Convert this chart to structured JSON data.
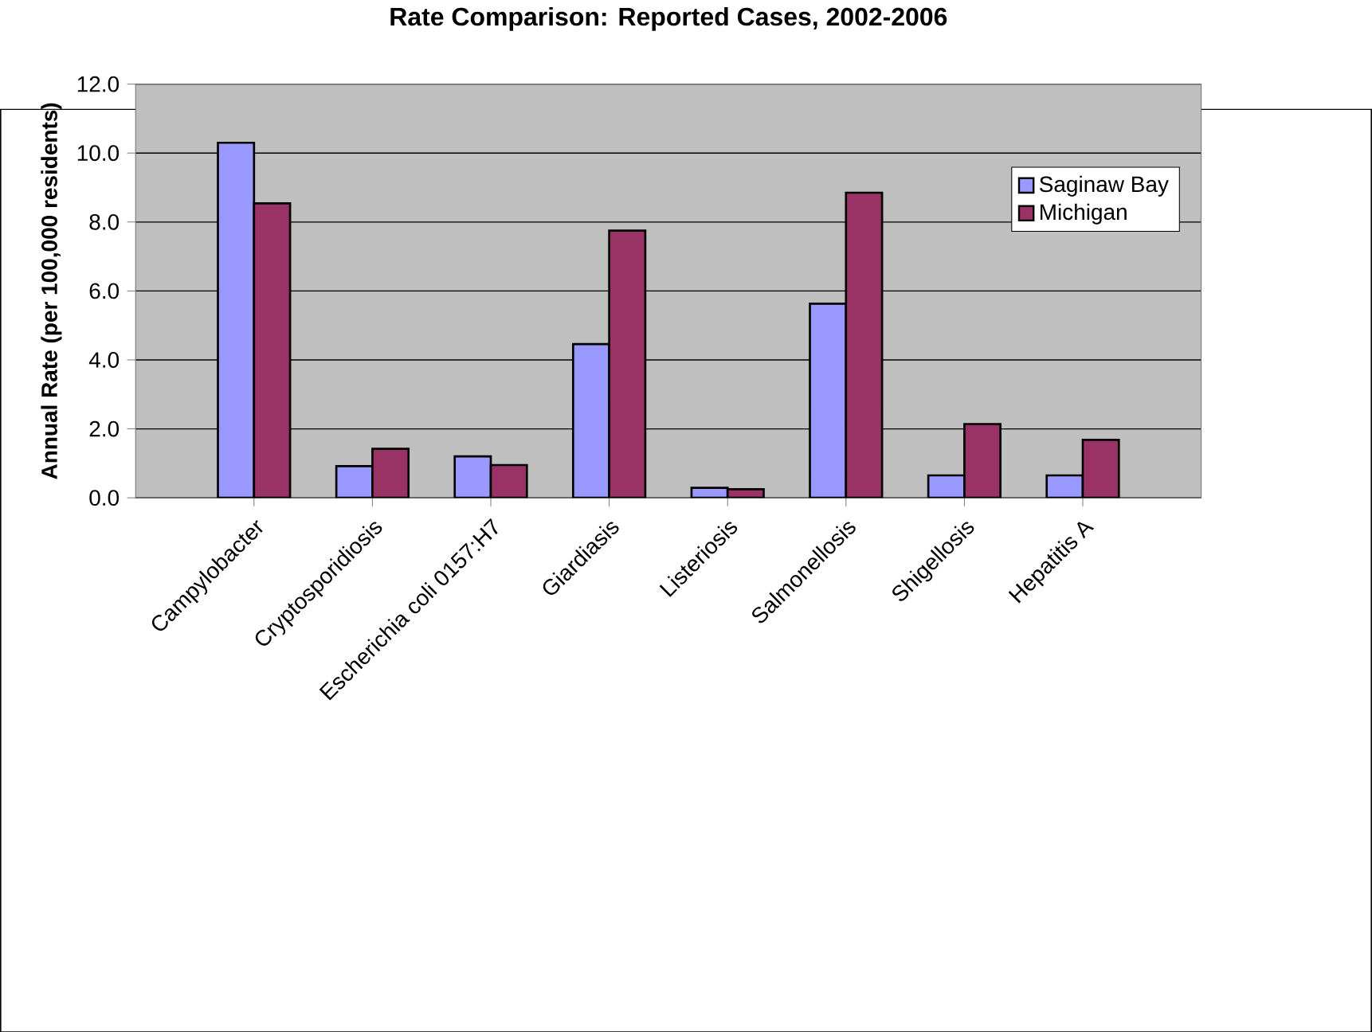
{
  "chart_data": {
    "type": "bar",
    "title": "Rate Comparison: Reported Cases, 2002-2006",
    "ylabel": "Annual Rate (per 100,000 residents)",
    "categories": [
      "Campylobacter",
      "Cryptosporidiosis",
      "Escherichia coli 0157:H7",
      "Giardiasis",
      "Listeriosis",
      "Salmonellosis",
      "Shigellosis",
      "Hepatitis A"
    ],
    "series": [
      {
        "name": "Saginaw Bay",
        "color": "#9999ff",
        "values": [
          10.3,
          0.92,
          1.2,
          4.46,
          0.29,
          5.63,
          0.65,
          0.65
        ]
      },
      {
        "name": "Michigan",
        "color": "#993366",
        "values": [
          8.54,
          1.42,
          0.95,
          7.75,
          0.25,
          8.85,
          2.14,
          1.68
        ]
      }
    ],
    "ylim": [
      0,
      12
    ],
    "yticks": [
      {
        "value": 0,
        "label": "0.0"
      },
      {
        "value": 2,
        "label": "2.0"
      },
      {
        "value": 4,
        "label": "4.0"
      },
      {
        "value": 6,
        "label": "6.0"
      },
      {
        "value": 8,
        "label": "8.0"
      },
      {
        "value": 10,
        "label": "10.0"
      },
      {
        "value": 12,
        "label": "12.0"
      }
    ],
    "grid": "y",
    "legend": "right"
  }
}
